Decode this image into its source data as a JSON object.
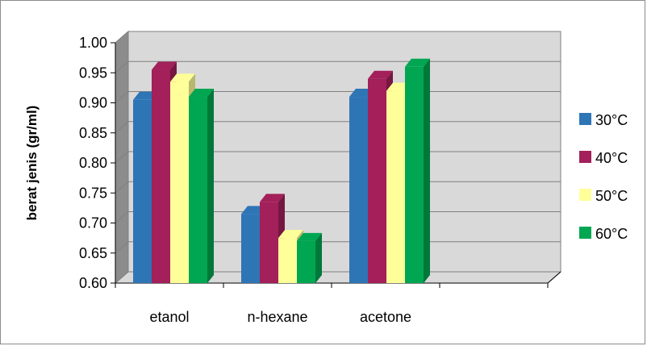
{
  "chart_data": {
    "type": "bar",
    "title": "",
    "xlabel": "",
    "ylabel": "berat jenis (gr/ml)",
    "ylim": [
      0.6,
      1.0
    ],
    "yticks": [
      "0.60",
      "0.65",
      "0.70",
      "0.75",
      "0.80",
      "0.85",
      "0.90",
      "0.95",
      "1.00"
    ],
    "categories": [
      "etanol",
      "n-hexane",
      "acetone",
      ""
    ],
    "series": [
      {
        "name": "30°C",
        "color": "#2e75b6",
        "values": [
          0.905,
          0.715,
          0.91,
          null
        ]
      },
      {
        "name": "40°C",
        "color": "#a3205a",
        "values": [
          0.955,
          0.735,
          0.94,
          null
        ]
      },
      {
        "name": "50°C",
        "color": "#ffff99",
        "values": [
          0.935,
          0.675,
          0.92,
          null
        ]
      },
      {
        "name": "60°C",
        "color": "#00a651",
        "values": [
          0.91,
          0.67,
          0.96,
          null
        ]
      }
    ],
    "grid": true,
    "legend_position": "right",
    "style": "3d-clustered-column"
  }
}
